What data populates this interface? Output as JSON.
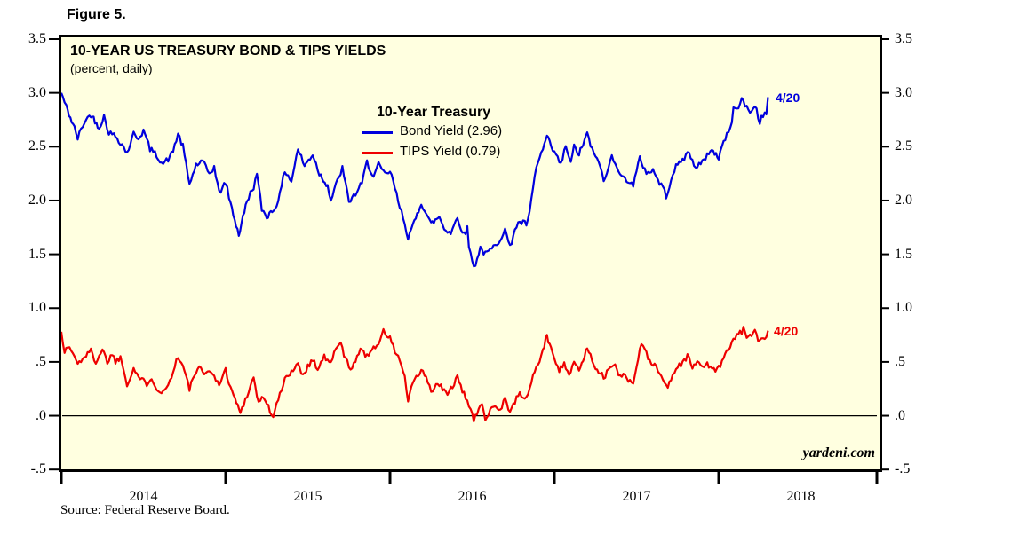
{
  "figure_label": "Figure 5.",
  "header": {
    "title": "10-YEAR US TREASURY BOND & TIPS YIELDS",
    "subtitle": "(percent, daily)"
  },
  "legend": {
    "header": "10-Year Treasury",
    "items": [
      {
        "label": "Bond Yield (2.96)",
        "color": "#0000dd"
      },
      {
        "label": "TIPS Yield (0.79)",
        "color": "#ee0000"
      }
    ]
  },
  "watermark": "yardeni.com",
  "source_note": "Source: Federal Reserve Board.",
  "colors": {
    "plot_background": "#ffffe0",
    "frame": "#000000",
    "bond_line": "#0000dd",
    "tips_line": "#ee0000"
  },
  "chart_data": {
    "type": "line",
    "title": "10-YEAR US TREASURY BOND & TIPS YIELDS",
    "subtitle": "(percent, daily)",
    "ylabel": "percent",
    "ylim": [
      -0.5,
      3.5
    ],
    "ytick_values": [
      3.5,
      3.0,
      2.5,
      2.0,
      1.5,
      1.0,
      0.5,
      0.0,
      -0.5
    ],
    "ytick_labels": [
      "3.5",
      "3.0",
      "2.5",
      "2.0",
      "1.5",
      "1.0",
      ".5",
      ".0",
      "-.5"
    ],
    "ytick_sides": "both",
    "xlim_years": [
      2014.0,
      2019.0
    ],
    "xtick_year_positions": [
      2014,
      2015,
      2016,
      2017,
      2018,
      2019
    ],
    "year_labels": [
      "2014",
      "2015",
      "2016",
      "2017",
      "2018"
    ],
    "grid": "zero-line-only",
    "legend_position": "top-center-inside",
    "series": [
      {
        "name": "10-Year Treasury Bond Yield",
        "color": "#0000dd",
        "end_label": "4/20",
        "last_value": 2.96,
        "points": [
          [
            2014.0,
            3.0
          ],
          [
            2014.03,
            2.87
          ],
          [
            2014.08,
            2.67
          ],
          [
            2014.1,
            2.58
          ],
          [
            2014.14,
            2.73
          ],
          [
            2014.18,
            2.8
          ],
          [
            2014.23,
            2.68
          ],
          [
            2014.26,
            2.78
          ],
          [
            2014.29,
            2.63
          ],
          [
            2014.33,
            2.6
          ],
          [
            2014.37,
            2.52
          ],
          [
            2014.4,
            2.44
          ],
          [
            2014.44,
            2.62
          ],
          [
            2014.47,
            2.58
          ],
          [
            2014.5,
            2.65
          ],
          [
            2014.54,
            2.48
          ],
          [
            2014.58,
            2.42
          ],
          [
            2014.62,
            2.34
          ],
          [
            2014.66,
            2.4
          ],
          [
            2014.68,
            2.46
          ],
          [
            2014.71,
            2.62
          ],
          [
            2014.74,
            2.5
          ],
          [
            2014.78,
            2.15
          ],
          [
            2014.82,
            2.33
          ],
          [
            2014.86,
            2.36
          ],
          [
            2014.9,
            2.25
          ],
          [
            2014.93,
            2.31
          ],
          [
            2014.96,
            2.07
          ],
          [
            2015.0,
            2.17
          ],
          [
            2015.03,
            1.97
          ],
          [
            2015.08,
            1.68
          ],
          [
            2015.13,
            2.0
          ],
          [
            2015.17,
            2.13
          ],
          [
            2015.19,
            2.24
          ],
          [
            2015.22,
            1.92
          ],
          [
            2015.25,
            1.85
          ],
          [
            2015.3,
            1.93
          ],
          [
            2015.33,
            2.05
          ],
          [
            2015.36,
            2.28
          ],
          [
            2015.4,
            2.18
          ],
          [
            2015.44,
            2.48
          ],
          [
            2015.48,
            2.32
          ],
          [
            2015.53,
            2.43
          ],
          [
            2015.57,
            2.25
          ],
          [
            2015.62,
            2.14
          ],
          [
            2015.64,
            2.0
          ],
          [
            2015.68,
            2.18
          ],
          [
            2015.71,
            2.3
          ],
          [
            2015.75,
            1.99
          ],
          [
            2015.79,
            2.06
          ],
          [
            2015.83,
            2.16
          ],
          [
            2015.86,
            2.36
          ],
          [
            2015.9,
            2.22
          ],
          [
            2015.93,
            2.33
          ],
          [
            2015.97,
            2.24
          ],
          [
            2016.0,
            2.27
          ],
          [
            2016.03,
            2.12
          ],
          [
            2016.05,
            1.98
          ],
          [
            2016.08,
            1.85
          ],
          [
            2016.11,
            1.66
          ],
          [
            2016.14,
            1.76
          ],
          [
            2016.19,
            1.98
          ],
          [
            2016.22,
            1.88
          ],
          [
            2016.25,
            1.78
          ],
          [
            2016.3,
            1.85
          ],
          [
            2016.33,
            1.74
          ],
          [
            2016.37,
            1.7
          ],
          [
            2016.41,
            1.84
          ],
          [
            2016.45,
            1.68
          ],
          [
            2016.47,
            1.74
          ],
          [
            2016.48,
            1.57
          ],
          [
            2016.5,
            1.46
          ],
          [
            2016.51,
            1.37
          ],
          [
            2016.55,
            1.56
          ],
          [
            2016.58,
            1.5
          ],
          [
            2016.62,
            1.55
          ],
          [
            2016.66,
            1.62
          ],
          [
            2016.7,
            1.73
          ],
          [
            2016.73,
            1.56
          ],
          [
            2016.76,
            1.74
          ],
          [
            2016.79,
            1.8
          ],
          [
            2016.83,
            1.78
          ],
          [
            2016.85,
            1.88
          ],
          [
            2016.88,
            2.22
          ],
          [
            2016.9,
            2.36
          ],
          [
            2016.93,
            2.47
          ],
          [
            2016.955,
            2.6
          ],
          [
            2016.98,
            2.49
          ],
          [
            2017.0,
            2.45
          ],
          [
            2017.04,
            2.33
          ],
          [
            2017.07,
            2.51
          ],
          [
            2017.1,
            2.34
          ],
          [
            2017.12,
            2.5
          ],
          [
            2017.15,
            2.43
          ],
          [
            2017.2,
            2.62
          ],
          [
            2017.24,
            2.42
          ],
          [
            2017.27,
            2.38
          ],
          [
            2017.3,
            2.17
          ],
          [
            2017.33,
            2.3
          ],
          [
            2017.35,
            2.42
          ],
          [
            2017.38,
            2.33
          ],
          [
            2017.41,
            2.21
          ],
          [
            2017.45,
            2.19
          ],
          [
            2017.48,
            2.14
          ],
          [
            2017.52,
            2.39
          ],
          [
            2017.56,
            2.26
          ],
          [
            2017.6,
            2.28
          ],
          [
            2017.63,
            2.19
          ],
          [
            2017.66,
            2.12
          ],
          [
            2017.68,
            2.04
          ],
          [
            2017.72,
            2.25
          ],
          [
            2017.74,
            2.31
          ],
          [
            2017.78,
            2.38
          ],
          [
            2017.82,
            2.45
          ],
          [
            2017.85,
            2.32
          ],
          [
            2017.89,
            2.34
          ],
          [
            2017.92,
            2.38
          ],
          [
            2017.95,
            2.48
          ],
          [
            2018.0,
            2.4
          ],
          [
            2018.03,
            2.55
          ],
          [
            2018.07,
            2.66
          ],
          [
            2018.09,
            2.84
          ],
          [
            2018.12,
            2.88
          ],
          [
            2018.14,
            2.94
          ],
          [
            2018.17,
            2.86
          ],
          [
            2018.2,
            2.82
          ],
          [
            2018.22,
            2.89
          ],
          [
            2018.25,
            2.73
          ],
          [
            2018.28,
            2.82
          ],
          [
            2018.29,
            2.8
          ],
          [
            2018.3,
            2.96
          ]
        ]
      },
      {
        "name": "10-Year Treasury TIPS Yield",
        "color": "#ee0000",
        "end_label": "4/20",
        "last_value": 0.79,
        "points": [
          [
            2014.0,
            0.78
          ],
          [
            2014.02,
            0.6
          ],
          [
            2014.05,
            0.64
          ],
          [
            2014.08,
            0.55
          ],
          [
            2014.1,
            0.48
          ],
          [
            2014.14,
            0.55
          ],
          [
            2014.18,
            0.6
          ],
          [
            2014.21,
            0.5
          ],
          [
            2014.25,
            0.62
          ],
          [
            2014.28,
            0.5
          ],
          [
            2014.31,
            0.58
          ],
          [
            2014.33,
            0.5
          ],
          [
            2014.36,
            0.55
          ],
          [
            2014.4,
            0.3
          ],
          [
            2014.42,
            0.36
          ],
          [
            2014.44,
            0.44
          ],
          [
            2014.48,
            0.34
          ],
          [
            2014.52,
            0.3
          ],
          [
            2014.55,
            0.36
          ],
          [
            2014.58,
            0.25
          ],
          [
            2014.62,
            0.22
          ],
          [
            2014.65,
            0.28
          ],
          [
            2014.68,
            0.42
          ],
          [
            2014.71,
            0.55
          ],
          [
            2014.74,
            0.46
          ],
          [
            2014.78,
            0.25
          ],
          [
            2014.81,
            0.38
          ],
          [
            2014.84,
            0.44
          ],
          [
            2014.87,
            0.38
          ],
          [
            2014.9,
            0.44
          ],
          [
            2014.93,
            0.35
          ],
          [
            2014.96,
            0.3
          ],
          [
            2015.0,
            0.42
          ],
          [
            2015.04,
            0.22
          ],
          [
            2015.09,
            0.03
          ],
          [
            2015.12,
            0.15
          ],
          [
            2015.15,
            0.28
          ],
          [
            2015.17,
            0.35
          ],
          [
            2015.2,
            0.12
          ],
          [
            2015.23,
            0.18
          ],
          [
            2015.26,
            0.08
          ],
          [
            2015.29,
            -0.01
          ],
          [
            2015.32,
            0.15
          ],
          [
            2015.36,
            0.33
          ],
          [
            2015.4,
            0.42
          ],
          [
            2015.44,
            0.48
          ],
          [
            2015.47,
            0.38
          ],
          [
            2015.5,
            0.46
          ],
          [
            2015.53,
            0.52
          ],
          [
            2015.56,
            0.44
          ],
          [
            2015.6,
            0.55
          ],
          [
            2015.63,
            0.48
          ],
          [
            2015.66,
            0.58
          ],
          [
            2015.7,
            0.68
          ],
          [
            2015.73,
            0.52
          ],
          [
            2015.76,
            0.44
          ],
          [
            2015.8,
            0.55
          ],
          [
            2015.83,
            0.62
          ],
          [
            2015.86,
            0.55
          ],
          [
            2015.89,
            0.62
          ],
          [
            2015.93,
            0.68
          ],
          [
            2015.96,
            0.78
          ],
          [
            2016.0,
            0.72
          ],
          [
            2016.03,
            0.6
          ],
          [
            2016.06,
            0.52
          ],
          [
            2016.09,
            0.35
          ],
          [
            2016.11,
            0.14
          ],
          [
            2016.14,
            0.3
          ],
          [
            2016.17,
            0.38
          ],
          [
            2016.2,
            0.42
          ],
          [
            2016.23,
            0.3
          ],
          [
            2016.26,
            0.22
          ],
          [
            2016.29,
            0.3
          ],
          [
            2016.32,
            0.25
          ],
          [
            2016.35,
            0.2
          ],
          [
            2016.38,
            0.28
          ],
          [
            2016.41,
            0.35
          ],
          [
            2016.44,
            0.22
          ],
          [
            2016.47,
            0.15
          ],
          [
            2016.5,
            0.02
          ],
          [
            2016.51,
            -0.05
          ],
          [
            2016.54,
            0.05
          ],
          [
            2016.56,
            0.12
          ],
          [
            2016.58,
            -0.02
          ],
          [
            2016.61,
            0.06
          ],
          [
            2016.64,
            0.1
          ],
          [
            2016.67,
            0.05
          ],
          [
            2016.7,
            0.16
          ],
          [
            2016.73,
            0.04
          ],
          [
            2016.76,
            0.12
          ],
          [
            2016.79,
            0.22
          ],
          [
            2016.82,
            0.14
          ],
          [
            2016.85,
            0.25
          ],
          [
            2016.88,
            0.42
          ],
          [
            2016.9,
            0.48
          ],
          [
            2016.93,
            0.6
          ],
          [
            2016.955,
            0.74
          ],
          [
            2016.98,
            0.62
          ],
          [
            2017.0,
            0.55
          ],
          [
            2017.03,
            0.42
          ],
          [
            2017.06,
            0.5
          ],
          [
            2017.09,
            0.38
          ],
          [
            2017.12,
            0.48
          ],
          [
            2017.15,
            0.42
          ],
          [
            2017.2,
            0.63
          ],
          [
            2017.24,
            0.48
          ],
          [
            2017.27,
            0.42
          ],
          [
            2017.3,
            0.35
          ],
          [
            2017.33,
            0.42
          ],
          [
            2017.36,
            0.48
          ],
          [
            2017.39,
            0.4
          ],
          [
            2017.42,
            0.38
          ],
          [
            2017.45,
            0.33
          ],
          [
            2017.48,
            0.3
          ],
          [
            2017.52,
            0.62
          ],
          [
            2017.54,
            0.67
          ],
          [
            2017.57,
            0.55
          ],
          [
            2017.6,
            0.48
          ],
          [
            2017.63,
            0.42
          ],
          [
            2017.66,
            0.35
          ],
          [
            2017.69,
            0.27
          ],
          [
            2017.72,
            0.38
          ],
          [
            2017.75,
            0.45
          ],
          [
            2017.78,
            0.5
          ],
          [
            2017.81,
            0.55
          ],
          [
            2017.84,
            0.46
          ],
          [
            2017.87,
            0.5
          ],
          [
            2017.9,
            0.44
          ],
          [
            2017.93,
            0.5
          ],
          [
            2017.96,
            0.42
          ],
          [
            2018.0,
            0.44
          ],
          [
            2018.03,
            0.54
          ],
          [
            2018.06,
            0.62
          ],
          [
            2018.09,
            0.7
          ],
          [
            2018.12,
            0.75
          ],
          [
            2018.15,
            0.8
          ],
          [
            2018.17,
            0.75
          ],
          [
            2018.2,
            0.72
          ],
          [
            2018.22,
            0.78
          ],
          [
            2018.25,
            0.68
          ],
          [
            2018.27,
            0.74
          ],
          [
            2018.29,
            0.72
          ],
          [
            2018.3,
            0.79
          ]
        ]
      }
    ]
  }
}
